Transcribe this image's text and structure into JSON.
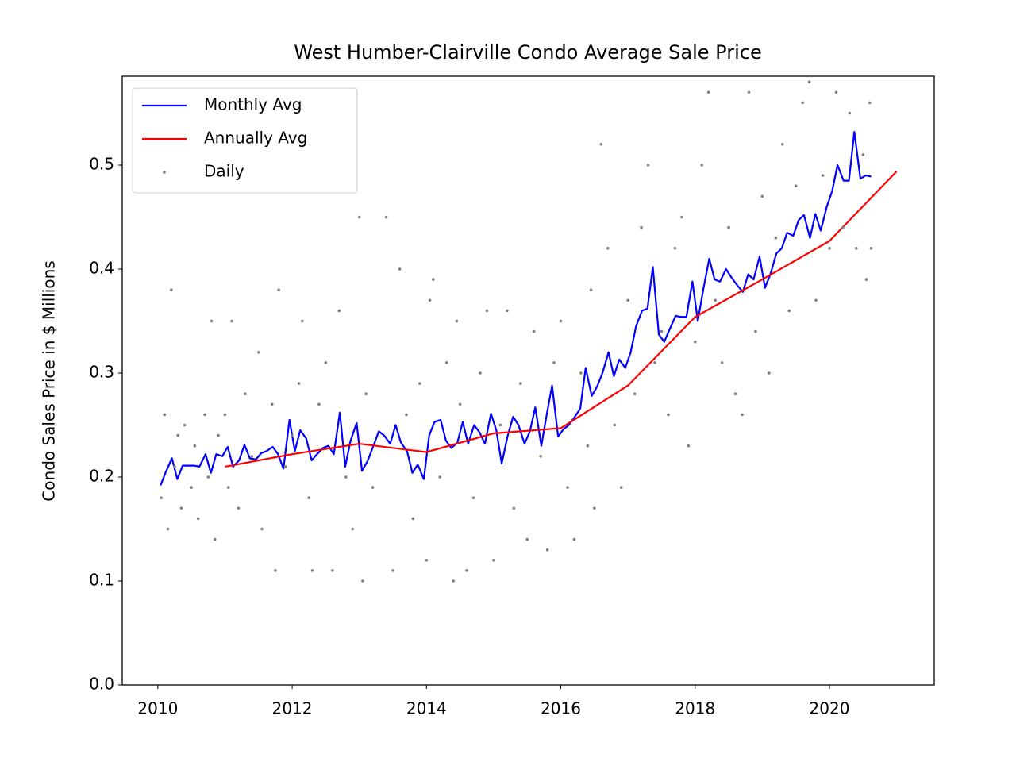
{
  "chart_data": {
    "type": "line",
    "title": "West Humber-Clairville Condo Average Sale Price",
    "y_label": "Condo Sales Price in $ Millions",
    "xlim": [
      2009.47,
      2021.56
    ],
    "ylim": [
      0,
      0.5855
    ],
    "xticks": [
      2010,
      2012,
      2014,
      2016,
      2018,
      2020
    ],
    "yticks": [
      {
        "value": 0,
        "label": "0.0"
      },
      0.1,
      0.2,
      0.3,
      0.4,
      0.5
    ],
    "legend": "upper left",
    "series": [
      {
        "name": "Monthly Avg",
        "type": "line",
        "color": "#0000ff",
        "x": [
          2010.04,
          2010.12,
          2010.21,
          2010.29,
          2010.37,
          2010.46,
          2010.54,
          2010.62,
          2010.71,
          2010.79,
          2010.87,
          2010.96,
          2011.04,
          2011.12,
          2011.21,
          2011.29,
          2011.37,
          2011.46,
          2011.54,
          2011.62,
          2011.71,
          2011.79,
          2011.87,
          2011.96,
          2012.04,
          2012.12,
          2012.21,
          2012.29,
          2012.37,
          2012.46,
          2012.54,
          2012.62,
          2012.71,
          2012.79,
          2012.87,
          2012.96,
          2013.04,
          2013.12,
          2013.21,
          2013.29,
          2013.37,
          2013.46,
          2013.54,
          2013.62,
          2013.71,
          2013.79,
          2013.87,
          2013.96,
          2014.04,
          2014.12,
          2014.21,
          2014.29,
          2014.37,
          2014.46,
          2014.54,
          2014.62,
          2014.71,
          2014.79,
          2014.87,
          2014.96,
          2015.04,
          2015.12,
          2015.21,
          2015.29,
          2015.37,
          2015.46,
          2015.54,
          2015.62,
          2015.71,
          2015.79,
          2015.87,
          2015.96,
          2016.04,
          2016.12,
          2016.21,
          2016.29,
          2016.37,
          2016.46,
          2016.54,
          2016.62,
          2016.71,
          2016.79,
          2016.87,
          2016.96,
          2017.04,
          2017.12,
          2017.21,
          2017.29,
          2017.37,
          2017.46,
          2017.54,
          2017.62,
          2017.71,
          2017.79,
          2017.87,
          2017.96,
          2018.04,
          2018.12,
          2018.21,
          2018.29,
          2018.37,
          2018.46,
          2018.54,
          2018.62,
          2018.71,
          2018.79,
          2018.87,
          2018.96,
          2019.04,
          2019.12,
          2019.21,
          2019.29,
          2019.37,
          2019.46,
          2019.54,
          2019.62,
          2019.71,
          2019.79,
          2019.87,
          2019.96,
          2020.04,
          2020.12,
          2020.21,
          2020.29,
          2020.37,
          2020.46,
          2020.54,
          2020.62
        ],
        "values": [
          0.192,
          0.205,
          0.218,
          0.198,
          0.211,
          0.211,
          0.211,
          0.21,
          0.222,
          0.204,
          0.222,
          0.22,
          0.229,
          0.21,
          0.216,
          0.231,
          0.218,
          0.217,
          0.223,
          0.225,
          0.229,
          0.222,
          0.208,
          0.255,
          0.225,
          0.245,
          0.237,
          0.216,
          0.222,
          0.228,
          0.23,
          0.222,
          0.262,
          0.21,
          0.235,
          0.252,
          0.206,
          0.215,
          0.23,
          0.244,
          0.24,
          0.232,
          0.25,
          0.233,
          0.225,
          0.204,
          0.212,
          0.198,
          0.24,
          0.253,
          0.255,
          0.235,
          0.228,
          0.233,
          0.253,
          0.232,
          0.25,
          0.243,
          0.232,
          0.261,
          0.245,
          0.213,
          0.24,
          0.258,
          0.25,
          0.232,
          0.244,
          0.267,
          0.23,
          0.26,
          0.288,
          0.239,
          0.246,
          0.25,
          0.258,
          0.266,
          0.305,
          0.278,
          0.287,
          0.3,
          0.32,
          0.297,
          0.313,
          0.305,
          0.32,
          0.345,
          0.36,
          0.362,
          0.402,
          0.337,
          0.33,
          0.342,
          0.355,
          0.354,
          0.354,
          0.388,
          0.35,
          0.38,
          0.41,
          0.39,
          0.388,
          0.4,
          0.392,
          0.385,
          0.378,
          0.395,
          0.39,
          0.412,
          0.382,
          0.395,
          0.415,
          0.42,
          0.435,
          0.432,
          0.447,
          0.452,
          0.43,
          0.453,
          0.437,
          0.46,
          0.475,
          0.5,
          0.485,
          0.485,
          0.532,
          0.487,
          0.49,
          0.489
        ]
      },
      {
        "name": "Annually Avg",
        "type": "line",
        "color": "#ff0000",
        "x": [
          2011,
          2012,
          2013,
          2014,
          2015,
          2016,
          2017,
          2018,
          2019,
          2020,
          2021
        ],
        "values": [
          0.21,
          0.222,
          0.232,
          0.224,
          0.242,
          0.247,
          0.288,
          0.354,
          0.39,
          0.427,
          0.494
        ]
      },
      {
        "name": "Daily",
        "type": "scatter",
        "color": "#808080",
        "x": [
          2010.05,
          2010.1,
          2010.15,
          2010.2,
          2010.25,
          2010.3,
          2010.35,
          2010.4,
          2010.5,
          2010.55,
          2010.6,
          2010.7,
          2010.75,
          2010.8,
          2010.85,
          2010.9,
          2011.0,
          2011.05,
          2011.1,
          2011.2,
          2011.3,
          2011.4,
          2011.5,
          2011.55,
          2011.7,
          2011.75,
          2011.8,
          2011.9,
          2012.0,
          2012.1,
          2012.15,
          2012.25,
          2012.3,
          2012.4,
          2012.5,
          2012.6,
          2012.7,
          2012.8,
          2012.9,
          2013.0,
          2013.05,
          2013.1,
          2013.2,
          2013.4,
          2013.5,
          2013.6,
          2013.7,
          2013.8,
          2013.9,
          2014.0,
          2014.05,
          2014.1,
          2014.2,
          2014.3,
          2014.4,
          2014.45,
          2014.5,
          2014.6,
          2014.7,
          2014.8,
          2014.9,
          2015.0,
          2015.1,
          2015.2,
          2015.3,
          2015.4,
          2015.5,
          2015.6,
          2015.7,
          2015.8,
          2015.9,
          2016.0,
          2016.1,
          2016.2,
          2016.3,
          2016.4,
          2016.45,
          2016.5,
          2016.6,
          2016.7,
          2016.8,
          2016.9,
          2017.0,
          2017.1,
          2017.2,
          2017.3,
          2017.4,
          2017.5,
          2017.6,
          2017.7,
          2017.8,
          2017.9,
          2018.0,
          2018.1,
          2018.2,
          2018.3,
          2018.4,
          2018.5,
          2018.6,
          2018.7,
          2018.8,
          2018.9,
          2019.0,
          2019.1,
          2019.2,
          2019.3,
          2019.4,
          2019.5,
          2019.6,
          2019.7,
          2019.8,
          2019.9,
          2020.0,
          2020.1,
          2020.2,
          2020.3,
          2020.4,
          2020.5,
          2020.55,
          2020.6,
          2020.62
        ],
        "values": [
          0.18,
          0.26,
          0.15,
          0.38,
          0.21,
          0.24,
          0.17,
          0.25,
          0.19,
          0.23,
          0.16,
          0.26,
          0.2,
          0.35,
          0.14,
          0.24,
          0.26,
          0.19,
          0.35,
          0.17,
          0.28,
          0.22,
          0.32,
          0.15,
          0.27,
          0.11,
          0.38,
          0.21,
          0.24,
          0.29,
          0.35,
          0.18,
          0.11,
          0.27,
          0.31,
          0.11,
          0.36,
          0.2,
          0.15,
          0.45,
          0.1,
          0.28,
          0.19,
          0.45,
          0.11,
          0.4,
          0.26,
          0.16,
          0.29,
          0.12,
          0.37,
          0.39,
          0.2,
          0.31,
          0.1,
          0.35,
          0.27,
          0.11,
          0.18,
          0.3,
          0.36,
          0.12,
          0.25,
          0.36,
          0.17,
          0.29,
          0.14,
          0.34,
          0.22,
          0.13,
          0.31,
          0.35,
          0.19,
          0.14,
          0.3,
          0.23,
          0.38,
          0.17,
          0.52,
          0.42,
          0.25,
          0.19,
          0.37,
          0.28,
          0.44,
          0.5,
          0.31,
          0.34,
          0.26,
          0.42,
          0.45,
          0.23,
          0.33,
          0.5,
          0.57,
          0.37,
          0.31,
          0.44,
          0.28,
          0.26,
          0.57,
          0.34,
          0.47,
          0.3,
          0.43,
          0.52,
          0.36,
          0.48,
          0.56,
          0.58,
          0.37,
          0.49,
          0.42,
          0.57,
          0.44,
          0.55,
          0.42,
          0.51,
          0.39,
          0.56,
          0.42
        ]
      }
    ]
  }
}
